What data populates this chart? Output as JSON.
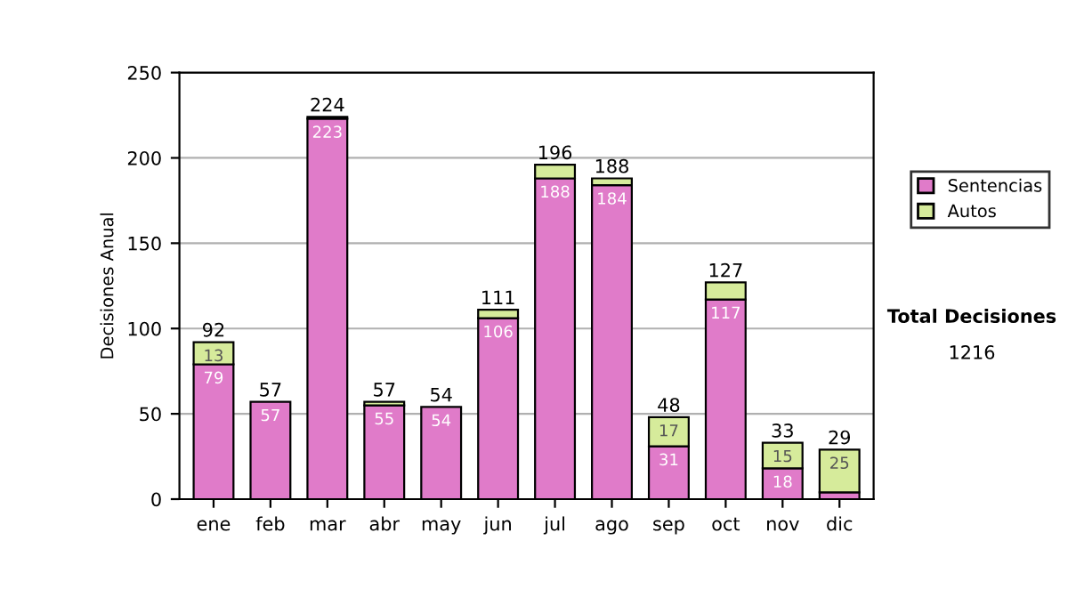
{
  "chart_data": {
    "type": "bar",
    "stacked": true,
    "ylabel": "Decisiones Anual",
    "categories": [
      "ene",
      "feb",
      "mar",
      "abr",
      "may",
      "jun",
      "jul",
      "ago",
      "sep",
      "oct",
      "nov",
      "dic"
    ],
    "series": [
      {
        "name": "Sentencias",
        "color": "#e07bc9",
        "values": [
          79,
          57,
          223,
          55,
          54,
          106,
          188,
          184,
          31,
          117,
          18,
          4
        ],
        "value_labels": [
          "79",
          "57",
          "223",
          "55",
          "54",
          "106",
          "188",
          "184",
          "31",
          "117",
          "18",
          null
        ]
      },
      {
        "name": "Autos",
        "color": "#d6eb9b",
        "values": [
          13,
          0,
          1,
          2,
          0,
          5,
          8,
          4,
          17,
          10,
          15,
          25
        ],
        "value_labels": [
          "13",
          null,
          null,
          null,
          null,
          null,
          null,
          null,
          "17",
          null,
          "15",
          "25"
        ]
      }
    ],
    "totals": [
      "92",
      "57",
      "224",
      "57",
      "54",
      "111",
      "196",
      "188",
      "48",
      "127",
      "33",
      "29"
    ],
    "ylim": [
      0,
      250
    ],
    "yticks": [
      0,
      50,
      100,
      150,
      200,
      250
    ],
    "grid": "y",
    "legend": "right",
    "annotations": [
      "Total Decisiones",
      "1216"
    ]
  }
}
